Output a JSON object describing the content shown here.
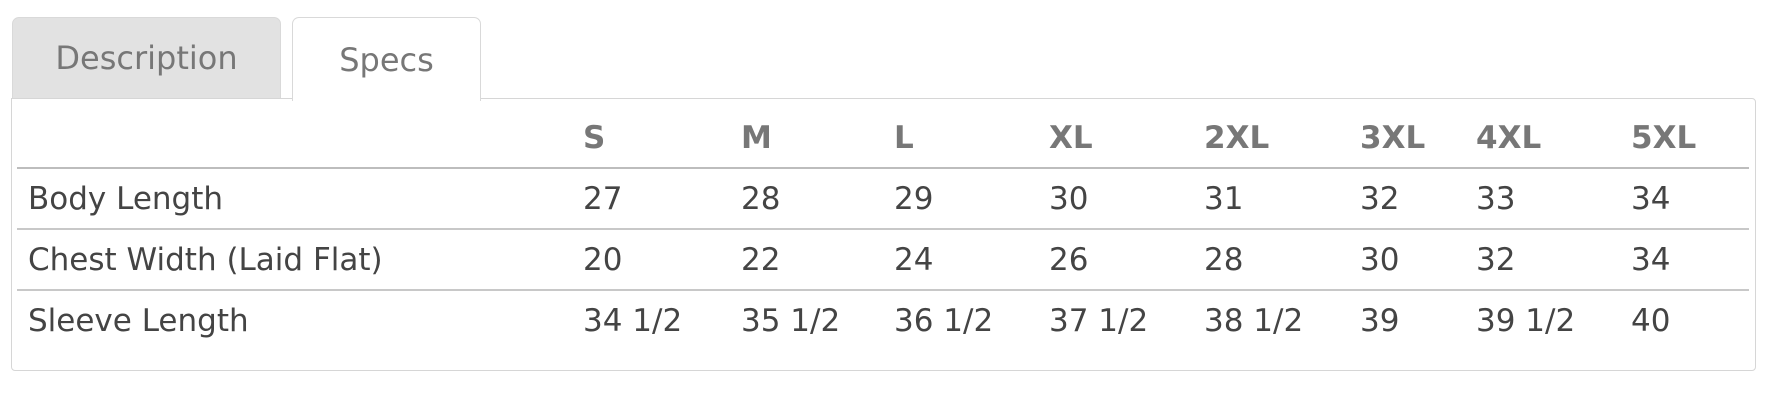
{
  "tabs": [
    {
      "label": "Description",
      "active": false
    },
    {
      "label": "Specs",
      "active": true
    }
  ],
  "specs_table": {
    "columns": [
      "",
      "S",
      "M",
      "L",
      "XL",
      "2XL",
      "3XL",
      "4XL",
      "5XL"
    ],
    "rows": [
      {
        "label": "Body Length",
        "values": [
          "27",
          "28",
          "29",
          "30",
          "31",
          "32",
          "33",
          "34"
        ]
      },
      {
        "label": "Chest Width (Laid Flat)",
        "values": [
          "20",
          "22",
          "24",
          "26",
          "28",
          "30",
          "32",
          "34"
        ]
      },
      {
        "label": "Sleeve Length",
        "values": [
          "34 1/2",
          "35 1/2",
          "36 1/2",
          "37 1/2",
          "38 1/2",
          "39",
          "39 1/2",
          "40"
        ]
      }
    ]
  },
  "colors": {
    "active_tab_bg": "#ffffff",
    "inactive_tab_bg": "#e2e2e2",
    "border": "#d6d6d6",
    "header_text": "#777777",
    "body_text": "#444444"
  }
}
